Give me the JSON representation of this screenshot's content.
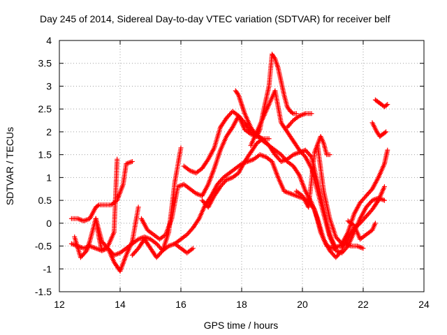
{
  "chart_data": {
    "type": "scatter",
    "title": "Day 245 of 2014, Sidereal Day-to-day VTEC variation (SDTVAR) for receiver belf",
    "xlabel": "GPS time / hours",
    "ylabel": "SDTVAR / TECUs",
    "xlim": [
      12,
      24
    ],
    "ylim": [
      -1.5,
      4
    ],
    "xticks": [
      "12",
      "14",
      "16",
      "18",
      "20",
      "22",
      "24"
    ],
    "yticks": [
      "-1.5",
      "-1",
      "-0.5",
      "0",
      "0.5",
      "1",
      "1.5",
      "2",
      "2.5",
      "3",
      "3.5",
      "4"
    ],
    "grid": true,
    "legend": "none",
    "marker": "plus",
    "color": "#ff0000",
    "series": [
      {
        "x": [
          12.4,
          12.6,
          12.8,
          13.0,
          13.2,
          13.4,
          13.6,
          13.8,
          14.0,
          14.2,
          14.4,
          14.6,
          14.8,
          15.0,
          15.2,
          15.4,
          15.6,
          15.8,
          16.0,
          16.2,
          16.4
        ],
        "y": [
          -0.45,
          -0.5,
          -0.55,
          -0.5,
          -0.55,
          -0.6,
          -0.55,
          -0.7,
          -0.65,
          -0.55,
          -0.45,
          -0.35,
          -0.3,
          -0.35,
          -0.45,
          -0.6,
          -0.5,
          -0.45,
          -0.55,
          -0.65,
          -0.55
        ]
      },
      {
        "x": [
          12.4,
          12.6,
          12.8,
          13.0,
          13.2,
          13.3,
          13.5,
          13.7,
          13.9,
          14.1,
          14.2,
          14.4
        ],
        "y": [
          0.1,
          0.1,
          0.05,
          0.1,
          0.35,
          0.4,
          0.4,
          0.4,
          0.5,
          0.85,
          1.3,
          1.35
        ]
      },
      {
        "x": [
          12.5,
          12.7,
          12.9,
          13.0,
          13.1,
          13.2,
          13.3,
          13.4,
          13.6,
          13.8,
          13.9
        ],
        "y": [
          -0.3,
          -0.75,
          -0.6,
          -0.4,
          -0.15,
          0.1,
          -0.3,
          -0.6,
          -0.5,
          -0.2,
          1.4
        ]
      },
      {
        "x": [
          13.2,
          13.4,
          13.6,
          13.8,
          14.0,
          14.2,
          14.4,
          14.6
        ],
        "y": [
          0.1,
          -0.4,
          -0.55,
          -0.85,
          -1.05,
          -0.7,
          -0.4,
          0.35
        ]
      },
      {
        "x": [
          14.4,
          14.6,
          14.8,
          15.0,
          15.2,
          15.4,
          15.6,
          15.8,
          16.0
        ],
        "y": [
          -0.7,
          -0.55,
          -0.35,
          -0.55,
          -0.75,
          -0.6,
          -0.2,
          0.9,
          1.65
        ]
      },
      {
        "x": [
          14.7,
          14.9,
          15.1,
          15.3,
          15.5,
          15.7,
          15.9,
          16.1,
          16.3,
          16.5,
          16.7,
          16.9,
          17.1,
          17.3,
          17.5,
          17.7,
          17.9,
          18.1,
          18.3,
          18.5,
          18.7,
          18.9
        ],
        "y": [
          0.1,
          -0.15,
          -0.25,
          -0.35,
          -0.25,
          0.1,
          0.8,
          0.85,
          0.75,
          0.65,
          0.6,
          0.85,
          1.2,
          1.6,
          1.9,
          2.1,
          2.35,
          2.05,
          1.95,
          1.9,
          1.85,
          1.85
        ]
      },
      {
        "x": [
          15.8,
          16.0,
          16.2,
          16.4,
          16.6,
          16.8,
          17.0,
          17.2,
          17.4,
          17.6,
          17.8,
          18.0,
          18.2,
          18.4,
          18.6,
          18.8,
          19.0,
          19.2,
          19.4,
          19.6,
          19.8,
          20.0,
          20.2,
          20.4,
          20.6,
          20.8,
          21.0,
          21.2,
          21.4,
          21.6,
          21.8,
          22.0
        ],
        "y": [
          -0.45,
          -0.35,
          -0.25,
          -0.1,
          0.1,
          0.4,
          0.6,
          0.85,
          1.0,
          1.1,
          1.2,
          1.3,
          1.35,
          1.4,
          1.5,
          1.45,
          1.35,
          1.0,
          0.7,
          0.65,
          0.6,
          0.55,
          0.5,
          0.3,
          -0.2,
          -0.5,
          -0.55,
          -0.5,
          -0.45,
          -0.5,
          -0.5,
          -0.55
        ]
      },
      {
        "x": [
          16.1,
          16.3,
          16.5,
          16.7,
          16.9,
          17.1,
          17.3,
          17.5,
          17.7,
          17.9,
          18.1,
          18.3,
          18.5,
          18.7,
          18.9,
          19.1,
          19.3,
          19.5,
          19.7,
          19.9,
          20.1,
          20.3,
          20.5,
          20.7,
          20.9,
          21.1,
          21.3
        ],
        "y": [
          1.25,
          1.15,
          1.1,
          1.2,
          1.4,
          1.65,
          2.1,
          2.3,
          2.45,
          2.35,
          2.2,
          2.0,
          1.95,
          1.8,
          1.7,
          1.6,
          1.5,
          1.35,
          1.25,
          1.05,
          0.7,
          0.45,
          0.1,
          -0.35,
          -0.6,
          -0.75,
          -0.6
        ]
      },
      {
        "x": [
          16.7,
          16.9,
          17.1,
          17.3,
          17.5,
          17.7,
          17.9,
          18.1,
          18.3,
          18.5,
          18.7,
          18.9,
          19.1,
          19.3,
          19.5,
          19.7,
          19.9,
          20.1,
          20.3,
          20.5,
          20.7,
          20.9,
          21.1
        ],
        "y": [
          0.5,
          0.35,
          0.6,
          0.8,
          0.95,
          1.0,
          1.1,
          1.35,
          1.55,
          1.75,
          1.85,
          1.7,
          1.5,
          1.35,
          1.4,
          1.5,
          1.55,
          1.6,
          1.45,
          0.9,
          0.3,
          -0.25,
          -0.55
        ]
      },
      {
        "x": [
          17.8,
          17.9,
          18.0,
          18.1,
          18.2,
          18.3,
          18.4,
          18.5,
          18.6,
          18.7,
          18.8,
          18.9,
          19.0,
          19.1,
          19.2,
          19.3,
          19.4,
          19.5,
          19.6,
          19.7,
          19.8
        ],
        "y": [
          2.9,
          2.8,
          2.6,
          2.4,
          2.25,
          2.1,
          2.0,
          1.9,
          2.05,
          2.4,
          2.7,
          3.0,
          3.7,
          3.6,
          3.4,
          3.1,
          2.8,
          2.55,
          2.45,
          2.4,
          2.4
        ]
      },
      {
        "x": [
          18.3,
          18.5,
          18.7,
          18.9,
          19.1,
          19.3,
          19.5,
          19.7,
          19.9,
          20.1,
          20.3,
          20.5,
          20.7,
          20.9,
          21.1,
          21.3,
          21.5,
          21.7,
          21.9,
          22.1,
          22.3,
          22.5,
          22.7
        ],
        "y": [
          1.7,
          2.0,
          2.3,
          2.6,
          2.9,
          2.2,
          2.0,
          1.8,
          1.6,
          1.45,
          1.2,
          0.7,
          0.2,
          -0.3,
          -0.6,
          -0.65,
          -0.5,
          -0.2,
          0.1,
          0.35,
          0.5,
          0.55,
          0.5
        ]
      },
      {
        "x": [
          19.8,
          20.0,
          20.2,
          20.4,
          20.6,
          20.7,
          20.8,
          20.9
        ],
        "y": [
          0.7,
          0.6,
          0.35,
          1.55,
          1.9,
          1.75,
          1.5,
          1.5
        ]
      },
      {
        "x": [
          19.5,
          19.7,
          19.9,
          20.1,
          20.3
        ],
        "y": [
          2.1,
          2.25,
          2.35,
          2.4,
          2.4
        ]
      },
      {
        "x": [
          20.5,
          20.7,
          20.9,
          21.1,
          21.3,
          21.5,
          21.7,
          21.9,
          22.1,
          22.3,
          22.5,
          22.7,
          22.8
        ],
        "y": [
          1.7,
          0.7,
          0.1,
          -0.3,
          -0.45,
          -0.2,
          0.2,
          0.45,
          0.6,
          0.75,
          1.0,
          1.3,
          1.6
        ]
      },
      {
        "x": [
          21.3,
          21.5,
          21.7,
          21.9,
          22.1,
          22.3,
          22.5,
          22.7
        ],
        "y": [
          -0.55,
          -0.35,
          -0.1,
          0.0,
          0.15,
          0.3,
          0.5,
          0.8
        ]
      },
      {
        "x": [
          21.5,
          21.7,
          21.9,
          22.1,
          22.3,
          22.4
        ],
        "y": [
          0.05,
          -0.05,
          -0.35,
          -0.25,
          -0.15,
          0.0
        ]
      },
      {
        "x": [
          22.3,
          22.45,
          22.55,
          22.65,
          22.75
        ],
        "y": [
          2.2,
          2.0,
          1.9,
          1.95,
          2.0
        ]
      },
      {
        "x": [
          22.4,
          22.5,
          22.6,
          22.7,
          22.8
        ],
        "y": [
          2.7,
          2.65,
          2.6,
          2.55,
          2.6
        ]
      }
    ]
  }
}
